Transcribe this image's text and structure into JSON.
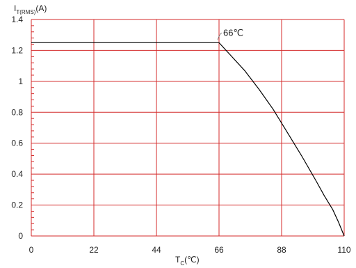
{
  "chart_data": {
    "type": "line",
    "ylabel": {
      "main": "I",
      "sub": "T(RMS)",
      "suffix": "(A)"
    },
    "xlabel": {
      "main": "T",
      "sub": "C",
      "suffix": "(℃)"
    },
    "x_ticks": [
      "0",
      "22",
      "44",
      "66",
      "88",
      "110"
    ],
    "y_ticks": [
      "0",
      "0.2",
      "0.4",
      "0.6",
      "0.8",
      "1",
      "1.2",
      "1.4"
    ],
    "xlim": [
      0,
      110
    ],
    "ylim": [
      0,
      1.4
    ],
    "x_grid": [
      0,
      22,
      44,
      66,
      88,
      110
    ],
    "y_grid": [
      0,
      0.2,
      0.4,
      0.6,
      0.8,
      1.0,
      1.2,
      1.4
    ],
    "grid": true,
    "grid_color": "#d42a2a",
    "line_color": "#000000",
    "series": [
      {
        "x": [
          0,
          66,
          70,
          75,
          80,
          85,
          90,
          95,
          100,
          103,
          106,
          108,
          110
        ],
        "y": [
          1.25,
          1.25,
          1.17,
          1.07,
          0.95,
          0.82,
          0.67,
          0.52,
          0.36,
          0.26,
          0.17,
          0.09,
          0.0
        ]
      }
    ],
    "annotations": [
      {
        "text": "66℃",
        "x": 66,
        "y": 1.25
      }
    ]
  }
}
